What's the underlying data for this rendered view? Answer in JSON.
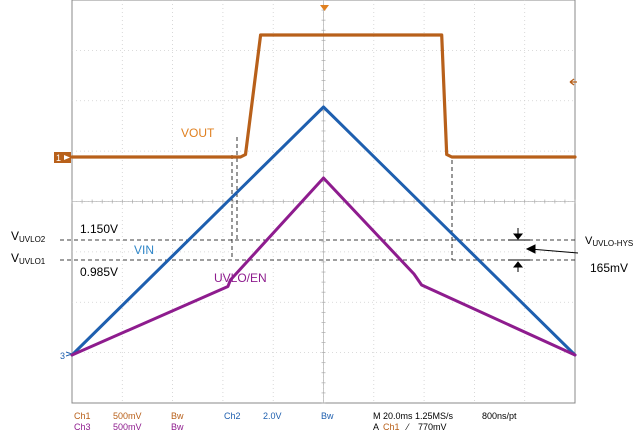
{
  "chart_data": {
    "type": "line",
    "x_unit": "ms",
    "x_range": [
      0,
      200
    ],
    "grid": true,
    "series": [
      {
        "name": "VOUT",
        "color": "#B8601A",
        "points": [
          [
            0,
            0.0
          ],
          [
            67,
            0.0
          ],
          [
            69,
            0.05
          ],
          [
            75,
            2.48
          ],
          [
            103,
            2.48
          ],
          [
            147,
            2.48
          ],
          [
            149,
            0.05
          ],
          [
            151,
            0.0
          ],
          [
            200,
            0.0
          ]
        ]
      },
      {
        "name": "VIN",
        "color": "#1E5FAF",
        "points": [
          [
            0,
            0.0
          ],
          [
            100,
            2.48
          ],
          [
            200,
            0.0
          ]
        ]
      },
      {
        "name": "UVLO/EN",
        "color": "#8E1C8E",
        "points": [
          [
            0,
            0.0
          ],
          [
            62,
            0.685
          ],
          [
            63,
            0.75
          ],
          [
            100,
            1.77
          ],
          [
            136,
            0.81
          ],
          [
            139,
            0.7
          ],
          [
            200,
            0.0
          ]
        ]
      }
    ],
    "annotations": {
      "vuvlo2": {
        "base": "V",
        "sub": "UVLO2",
        "value": "1.150V"
      },
      "vuvlo1": {
        "base": "V",
        "sub": "UVLO1",
        "value": "0.985V"
      },
      "hys": {
        "base": "V",
        "sub": "UVLO-HYS",
        "value": "165mV"
      }
    },
    "markers": {
      "ch1": "1",
      "ch3": "3"
    }
  },
  "readout": {
    "row1": {
      "ch1": "Ch1",
      "ch1_scale": "500mV",
      "ch1_bw": "Bw",
      "ch2": "Ch2",
      "ch2_scale": "2.0V",
      "ch2_bw": "Bw",
      "timebase": "M 20.0ms 1.25MS/s",
      "rate": "800ns/pt"
    },
    "row2": {
      "ch3": "Ch3",
      "ch3_scale": "500mV",
      "ch3_bw": "Bw",
      "trig": "A",
      "trig_ch": "Ch1",
      "trig_level": "770mV"
    }
  },
  "colors": {
    "vout": "#B8601A",
    "vin": "#1E5FAF",
    "uvlo": "#8E1C8E",
    "grid": "#C8C8C8",
    "frame": "#888888"
  }
}
